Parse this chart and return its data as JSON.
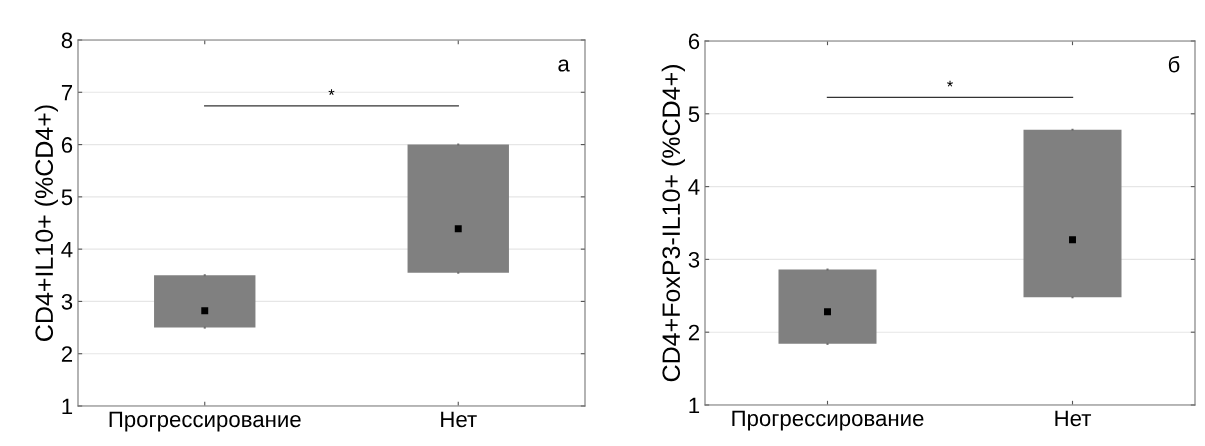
{
  "chart_data": [
    {
      "type": "box",
      "ylabel": "CD4+IL10+ (%CD4+)",
      "categories": [
        "Прогрессирование",
        "Нет"
      ],
      "color": "#808080",
      "boxes": [
        {
          "low": 2.5,
          "q1": 2.5,
          "median": 2.82,
          "q3": 3.5,
          "high": 3.5
        },
        {
          "low": 3.55,
          "q1": 3.55,
          "median": 4.39,
          "q3": 6.0,
          "high": 6.0
        }
      ],
      "ylim": [
        1,
        8
      ],
      "yticks": [
        1,
        2,
        3,
        4,
        5,
        6,
        7,
        8
      ],
      "grid": "y",
      "marker": "square",
      "annotations": [
        "а",
        "*"
      ]
    },
    {
      "type": "box",
      "ylabel": "CD4+FoxP3-IL10+ (%CD4+)",
      "categories": [
        "Прогрессирование",
        "Нет"
      ],
      "color": "#808080",
      "boxes": [
        {
          "low": 1.84,
          "q1": 1.84,
          "median": 2.28,
          "q3": 2.86,
          "high": 2.86
        },
        {
          "low": 2.48,
          "q1": 2.48,
          "median": 3.27,
          "q3": 4.78,
          "high": 4.78
        }
      ],
      "ylim": [
        1,
        6
      ],
      "yticks": [
        1,
        2,
        3,
        4,
        5,
        6
      ],
      "grid": "y",
      "marker": "square",
      "annotations": [
        "б",
        "*"
      ]
    }
  ]
}
